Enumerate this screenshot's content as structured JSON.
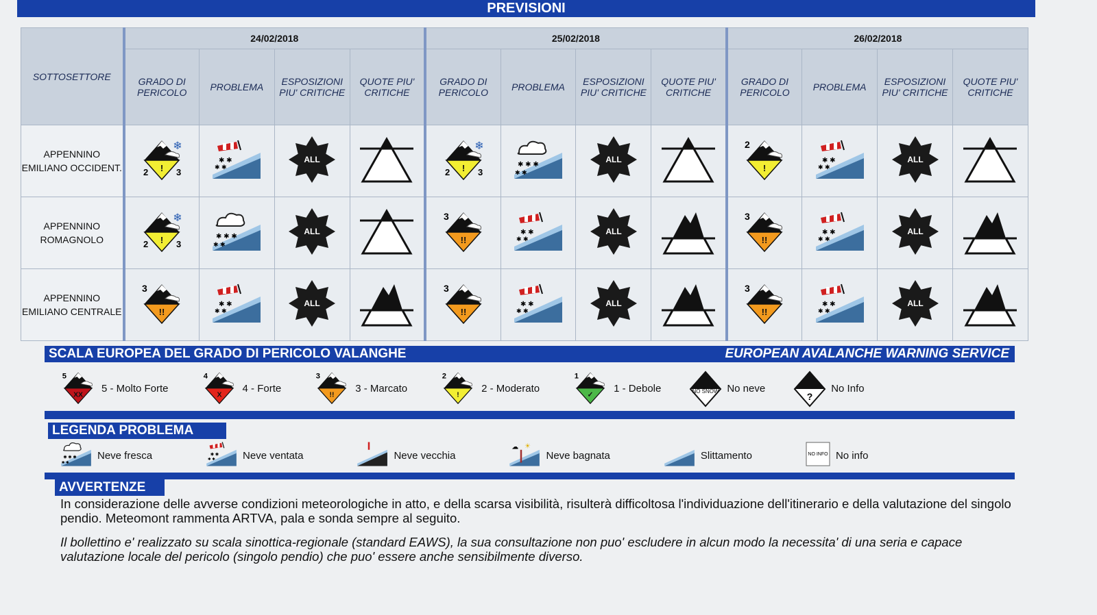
{
  "header": {
    "title": "PREVISIONI"
  },
  "table": {
    "sector_header": "SOTTOSETTORE",
    "column_headers": [
      "GRADO DI PERICOLO",
      "PROBLEMA",
      "ESPOSIZIONI PIU' CRITICHE",
      "QUOTE PIU' CRITICHE"
    ],
    "days": [
      "24/02/2018",
      "25/02/2018",
      "26/02/2018"
    ],
    "rows": [
      {
        "sector": "APPENNINO EMILIANO OCCIDENT.",
        "days": [
          {
            "danger": "2",
            "danger_to": "3",
            "snowfall": true,
            "problem": "neve-ventata",
            "exposure": "ALL",
            "altitude": "above"
          },
          {
            "danger": "2",
            "danger_to": "3",
            "snowfall": true,
            "problem": "neve-fresca",
            "exposure": "ALL",
            "altitude": "above"
          },
          {
            "danger": "2",
            "danger_to": null,
            "snowfall": false,
            "problem": "neve-ventata",
            "exposure": "ALL",
            "altitude": "above"
          }
        ]
      },
      {
        "sector": "APPENNINO ROMAGNOLO",
        "days": [
          {
            "danger": "2",
            "danger_to": "3",
            "snowfall": true,
            "problem": "neve-fresca",
            "exposure": "ALL",
            "altitude": "above"
          },
          {
            "danger": "3",
            "danger_to": null,
            "snowfall": false,
            "problem": "neve-ventata",
            "exposure": "ALL",
            "altitude": "below"
          },
          {
            "danger": "3",
            "danger_to": null,
            "snowfall": false,
            "problem": "neve-ventata",
            "exposure": "ALL",
            "altitude": "below"
          }
        ]
      },
      {
        "sector": "APPENNINO EMILIANO CENTRALE",
        "days": [
          {
            "danger": "3",
            "danger_to": null,
            "snowfall": false,
            "problem": "neve-ventata",
            "exposure": "ALL",
            "altitude": "below"
          },
          {
            "danger": "3",
            "danger_to": null,
            "snowfall": false,
            "problem": "neve-ventata",
            "exposure": "ALL",
            "altitude": "below"
          },
          {
            "danger": "3",
            "danger_to": null,
            "snowfall": false,
            "problem": "neve-ventata",
            "exposure": "ALL",
            "altitude": "below"
          }
        ]
      }
    ]
  },
  "scale": {
    "title": "SCALA EUROPEA DEL GRADO DI PERICOLO VALANGHE",
    "service": "EUROPEAN AVALANCHE WARNING SERVICE",
    "items": [
      {
        "level": "5",
        "label": "5 - Molto Forte",
        "color": "#c0141b"
      },
      {
        "level": "4",
        "label": "4 - Forte",
        "color": "#e3261c"
      },
      {
        "level": "3",
        "label": "3 - Marcato",
        "color": "#f39a1e"
      },
      {
        "level": "2",
        "label": "2 - Moderato",
        "color": "#f2ee33"
      },
      {
        "level": "1",
        "label": "1 - Debole",
        "color": "#4cb848"
      }
    ],
    "no_snow": {
      "label": "No neve",
      "icon_text": "NO SNOW"
    },
    "no_info": {
      "label": "No Info",
      "icon_text": "?"
    }
  },
  "problems": {
    "title": "LEGENDA PROBLEMA",
    "items": [
      {
        "id": "neve-fresca",
        "label": "Neve fresca"
      },
      {
        "id": "neve-ventata",
        "label": "Neve ventata"
      },
      {
        "id": "neve-vecchia",
        "label": "Neve vecchia"
      },
      {
        "id": "neve-bagnata",
        "label": "Neve bagnata"
      },
      {
        "id": "slittamento",
        "label": "Slittamento"
      },
      {
        "id": "no-info",
        "label": "No info",
        "icon_text": "NO INFO"
      }
    ]
  },
  "warnings": {
    "title": "AVVERTENZE",
    "paragraphs": [
      "In considerazione delle avverse condizioni meteorologiche in atto, e della scarsa visibilità, risulterà difficoltosa l'individuazione dell'itinerario e della valutazione del singolo pendio. Meteomont rammenta ARTVA, pala e sonda sempre al seguito.",
      "Il bollettino e' realizzato su scala sinottica-regionale (standard EAWS), la sua consultazione non puo' escludere in alcun modo la necessita' di una seria e capace valutazione locale del pericolo (singolo pendio) che puo' essere anche sensibilmente diverso."
    ]
  },
  "colors": {
    "band": "#1740a8",
    "level1": "#4cb848",
    "level2": "#f2ee33",
    "level3": "#f39a1e",
    "level4": "#e3261c",
    "level5": "#c0141b"
  }
}
